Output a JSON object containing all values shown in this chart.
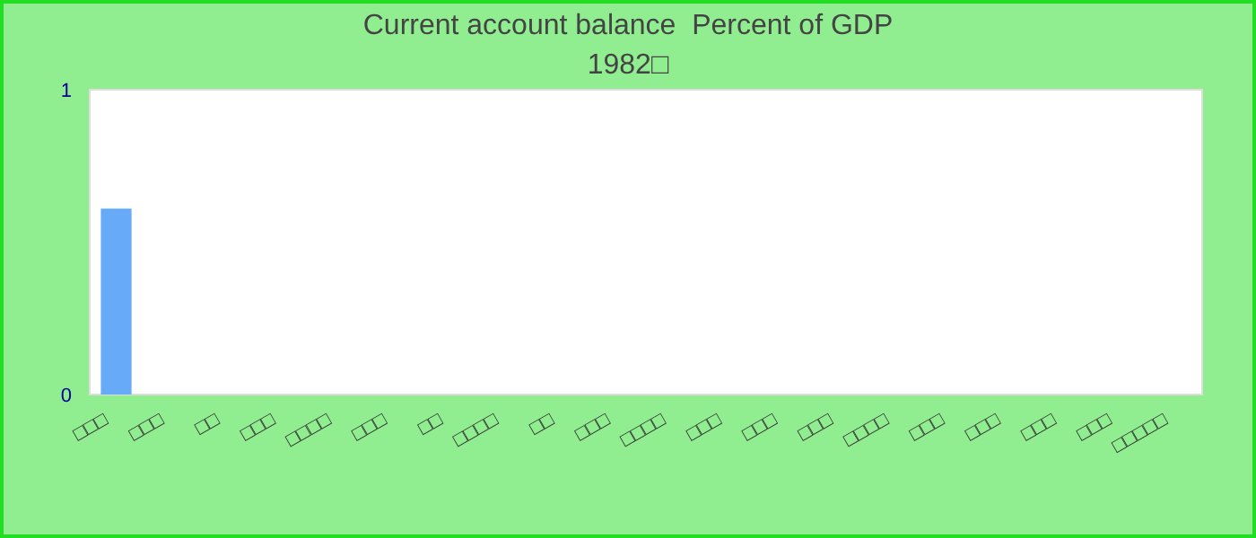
{
  "chart_data": {
    "type": "bar",
    "title": "Current account balance  Percent of GDP",
    "subtitle": "1982□",
    "categories": [
      "□□□",
      "□□□",
      "□□",
      "□□□",
      "□□□□",
      "□□□",
      "□□",
      "□□□□",
      "□□",
      "□□□",
      "□□□□",
      "□□□",
      "□□□",
      "□□□",
      "□□□□",
      "□□□",
      "□□□",
      "□□□",
      "□□□",
      "□□□□□"
    ],
    "values": [
      0.61,
      0,
      0,
      0,
      0,
      0,
      0,
      0,
      0,
      0,
      0,
      0,
      0,
      0,
      0,
      0,
      0,
      0,
      0,
      0
    ],
    "color": "#66aaf8",
    "ylim": [
      0,
      1
    ],
    "yticks": [
      0,
      1
    ]
  }
}
